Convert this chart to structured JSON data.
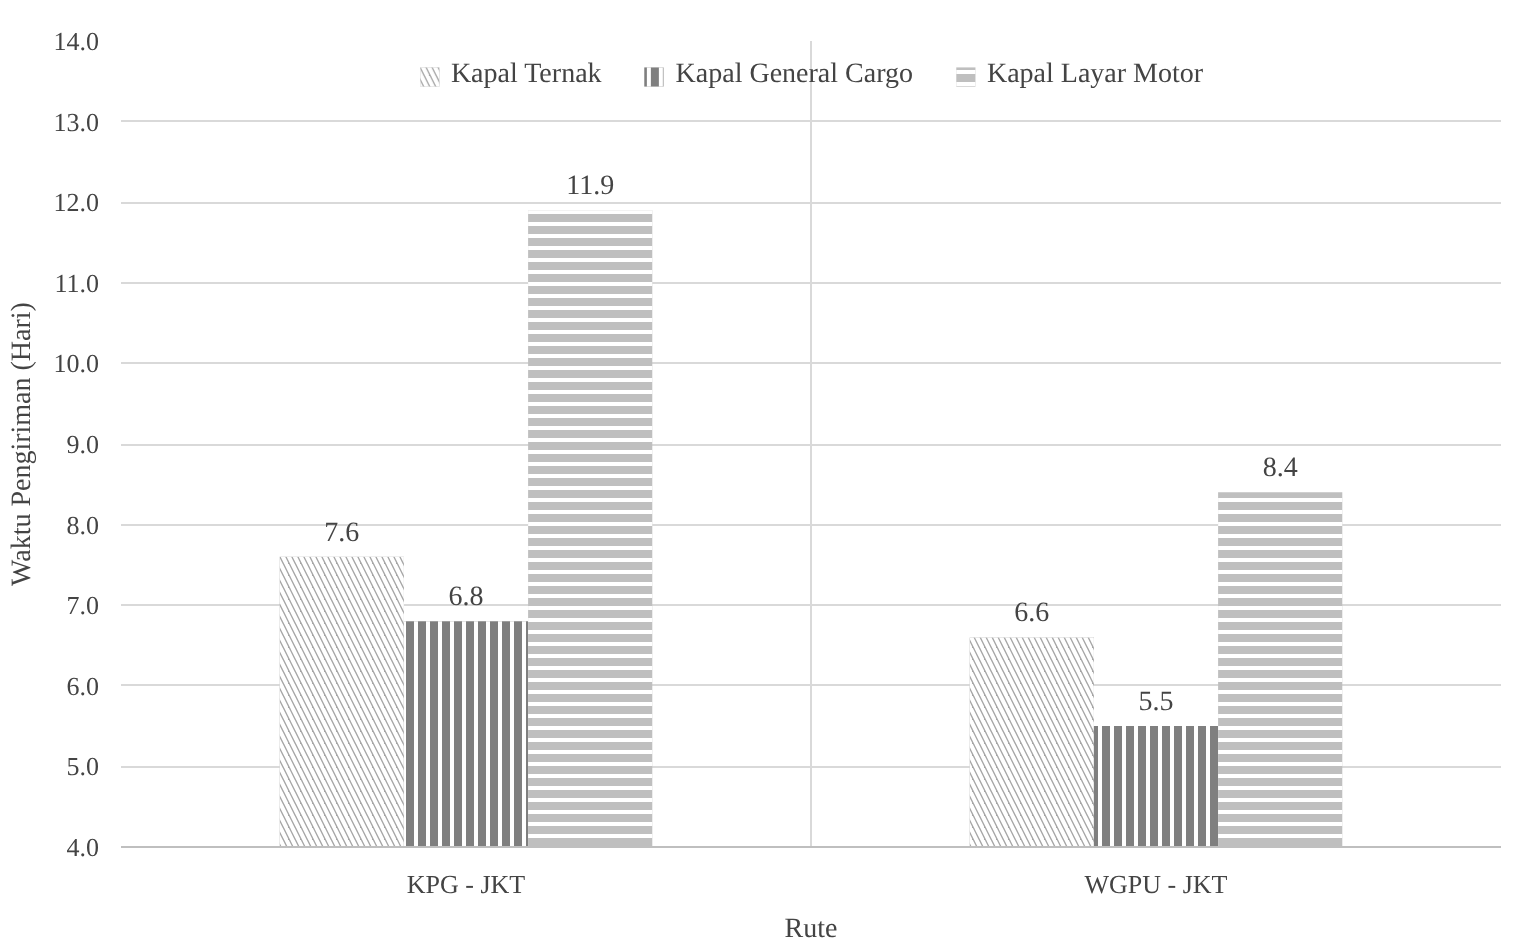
{
  "chart_data": {
    "type": "bar",
    "xlabel": "Rute",
    "ylabel": "Waktu Pengiriman (Hari)",
    "categories": [
      "KPG - JKT",
      "WGPU - JKT"
    ],
    "series": [
      {
        "name": "Kapal Ternak",
        "color": "#a6a6a6",
        "values": [
          7.6,
          6.6
        ]
      },
      {
        "name": "Kapal General Cargo",
        "color": "#7f7f7f",
        "values": [
          6.8,
          5.5
        ]
      },
      {
        "name": "Kapal Layar Motor",
        "color": "#bfbfbf",
        "values": [
          11.9,
          8.4
        ]
      }
    ],
    "ylim": [
      4,
      14
    ],
    "yticks": [
      {
        "value": 4,
        "label": "4.0"
      },
      {
        "value": 5,
        "label": "5.0"
      },
      {
        "value": 6,
        "label": "6.0"
      },
      {
        "value": 7,
        "label": "7.0"
      },
      {
        "value": 8,
        "label": "8.0"
      },
      {
        "value": 9,
        "label": "9.0"
      },
      {
        "value": 10,
        "label": "10.0"
      },
      {
        "value": 11,
        "label": "11.0"
      },
      {
        "value": 12,
        "label": "12.0"
      },
      {
        "value": 13,
        "label": "13.0"
      },
      {
        "value": 14,
        "label": "14.0"
      }
    ],
    "grid": true,
    "legend": "top",
    "data_labels": true
  }
}
